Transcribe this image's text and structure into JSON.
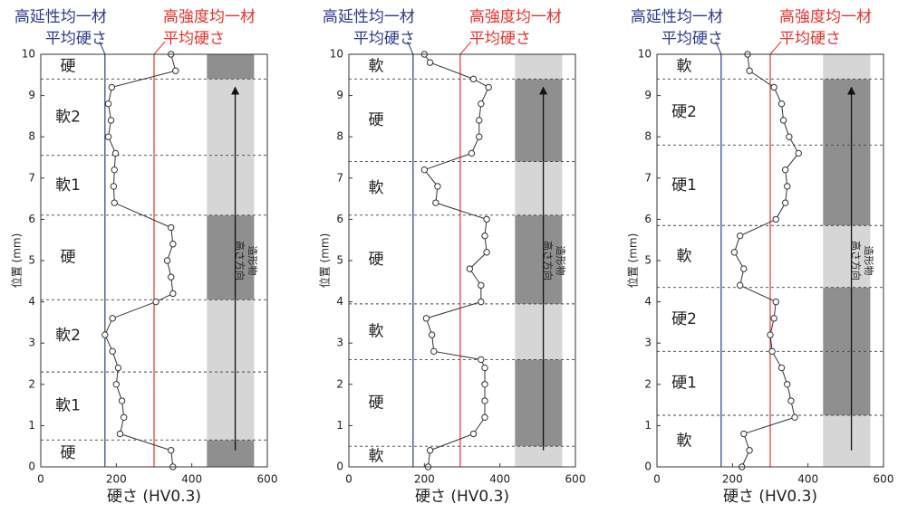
{
  "chart_data": [
    {
      "type": "line",
      "x_label": "硬さ (HV0.3)",
      "y_label": "位置 (mm)",
      "xlim": [
        0,
        600
      ],
      "xticks": [
        0,
        200,
        400,
        600
      ],
      "ylim": [
        0,
        10
      ],
      "yticks": [
        0,
        1,
        2,
        3,
        4,
        5,
        6,
        7,
        8,
        9,
        10
      ],
      "color": "#333333",
      "x": [
        350,
        345,
        210,
        220,
        215,
        200,
        205,
        190,
        170,
        190,
        305,
        350,
        345,
        335,
        350,
        345,
        195,
        193,
        195,
        198,
        179,
        186,
        179,
        188,
        357,
        345
      ],
      "y": [
        0.0,
        0.4,
        0.8,
        1.2,
        1.6,
        2.0,
        2.4,
        2.8,
        3.2,
        3.6,
        4.0,
        4.2,
        4.6,
        5.0,
        5.4,
        5.8,
        6.4,
        6.8,
        7.2,
        7.6,
        8.0,
        8.4,
        8.8,
        9.2,
        9.6,
        10.0
      ],
      "reference_lines": [
        {
          "lines": [
            "高延性均一材",
            "平均硬さ"
          ],
          "value": 170,
          "color": "#2b3a8f"
        },
        {
          "lines": [
            "高強度均一材",
            "平均硬さ"
          ],
          "value": 300,
          "color": "#e8322d"
        }
      ],
      "boundaries": [
        0.65,
        2.3,
        4.05,
        6.1,
        7.55,
        9.4
      ],
      "regions": [
        "硬",
        "軟1",
        "軟2",
        "硬",
        "軟1",
        "軟2",
        "硬"
      ],
      "image_annotation": [
        "造形物",
        "高さ方向"
      ]
    },
    {
      "type": "line",
      "x_label": "硬さ (HV0.3)",
      "y_label": "位置 (mm)",
      "xlim": [
        0,
        600
      ],
      "xticks": [
        0,
        200,
        400,
        600
      ],
      "ylim": [
        0,
        10
      ],
      "yticks": [
        0,
        1,
        2,
        3,
        4,
        5,
        6,
        7,
        8,
        9,
        10
      ],
      "color": "#333333",
      "x": [
        210,
        215,
        330,
        360,
        360,
        360,
        360,
        350,
        225,
        220,
        205,
        350,
        350,
        320,
        365,
        360,
        365,
        230,
        235,
        200,
        325,
        345,
        345,
        350,
        370,
        330,
        215,
        200
      ],
      "y": [
        0.0,
        0.4,
        0.8,
        1.2,
        1.6,
        2.0,
        2.4,
        2.6,
        2.8,
        3.2,
        3.6,
        4.0,
        4.4,
        4.8,
        5.2,
        5.6,
        6.0,
        6.4,
        6.8,
        7.2,
        7.6,
        8.0,
        8.4,
        8.8,
        9.2,
        9.4,
        9.8,
        10.0
      ],
      "reference_lines": [
        {
          "lines": [
            "高延性均一材",
            "平均硬さ"
          ],
          "value": 170,
          "color": "#2b3a8f"
        },
        {
          "lines": [
            "高強度均一材",
            "平均硬さ"
          ],
          "value": 295,
          "color": "#e8322d"
        }
      ],
      "boundaries": [
        0.5,
        2.6,
        3.95,
        6.1,
        7.4,
        9.4
      ],
      "regions": [
        "軟",
        "硬",
        "軟",
        "硬",
        "軟",
        "硬",
        "軟"
      ],
      "image_annotation": [
        "造形物",
        "高さ方向"
      ]
    },
    {
      "type": "line",
      "x_label": "硬さ (HV0.3)",
      "y_label": "位置 (mm)",
      "xlim": [
        0,
        600
      ],
      "xticks": [
        0,
        200,
        400,
        600
      ],
      "ylim": [
        0,
        10
      ],
      "yticks": [
        0,
        1,
        2,
        3,
        4,
        5,
        6,
        7,
        8,
        9,
        10
      ],
      "color": "#333333",
      "x": [
        225,
        245,
        230,
        365,
        355,
        345,
        330,
        305,
        300,
        310,
        315,
        220,
        230,
        205,
        220,
        315,
        340,
        345,
        340,
        375,
        350,
        335,
        330,
        310,
        245,
        240
      ],
      "y": [
        0.0,
        0.4,
        0.8,
        1.2,
        1.6,
        2.0,
        2.4,
        2.8,
        3.2,
        3.6,
        4.0,
        4.4,
        4.8,
        5.2,
        5.6,
        6.0,
        6.4,
        6.8,
        7.2,
        7.6,
        8.0,
        8.4,
        8.8,
        9.2,
        9.6,
        10.0
      ],
      "reference_lines": [
        {
          "lines": [
            "高延性均一材",
            "平均硬さ"
          ],
          "value": 170,
          "color": "#2b3a8f"
        },
        {
          "lines": [
            "高強度均一材",
            "平均硬さ"
          ],
          "value": 300,
          "color": "#e8322d"
        }
      ],
      "boundaries": [
        1.25,
        2.8,
        4.35,
        5.85,
        7.8,
        9.4
      ],
      "regions": [
        "軟",
        "硬1",
        "硬2",
        "軟",
        "硬1",
        "硬2",
        "軟"
      ],
      "image_annotation": [
        "造形物",
        "高さ方向"
      ]
    }
  ]
}
